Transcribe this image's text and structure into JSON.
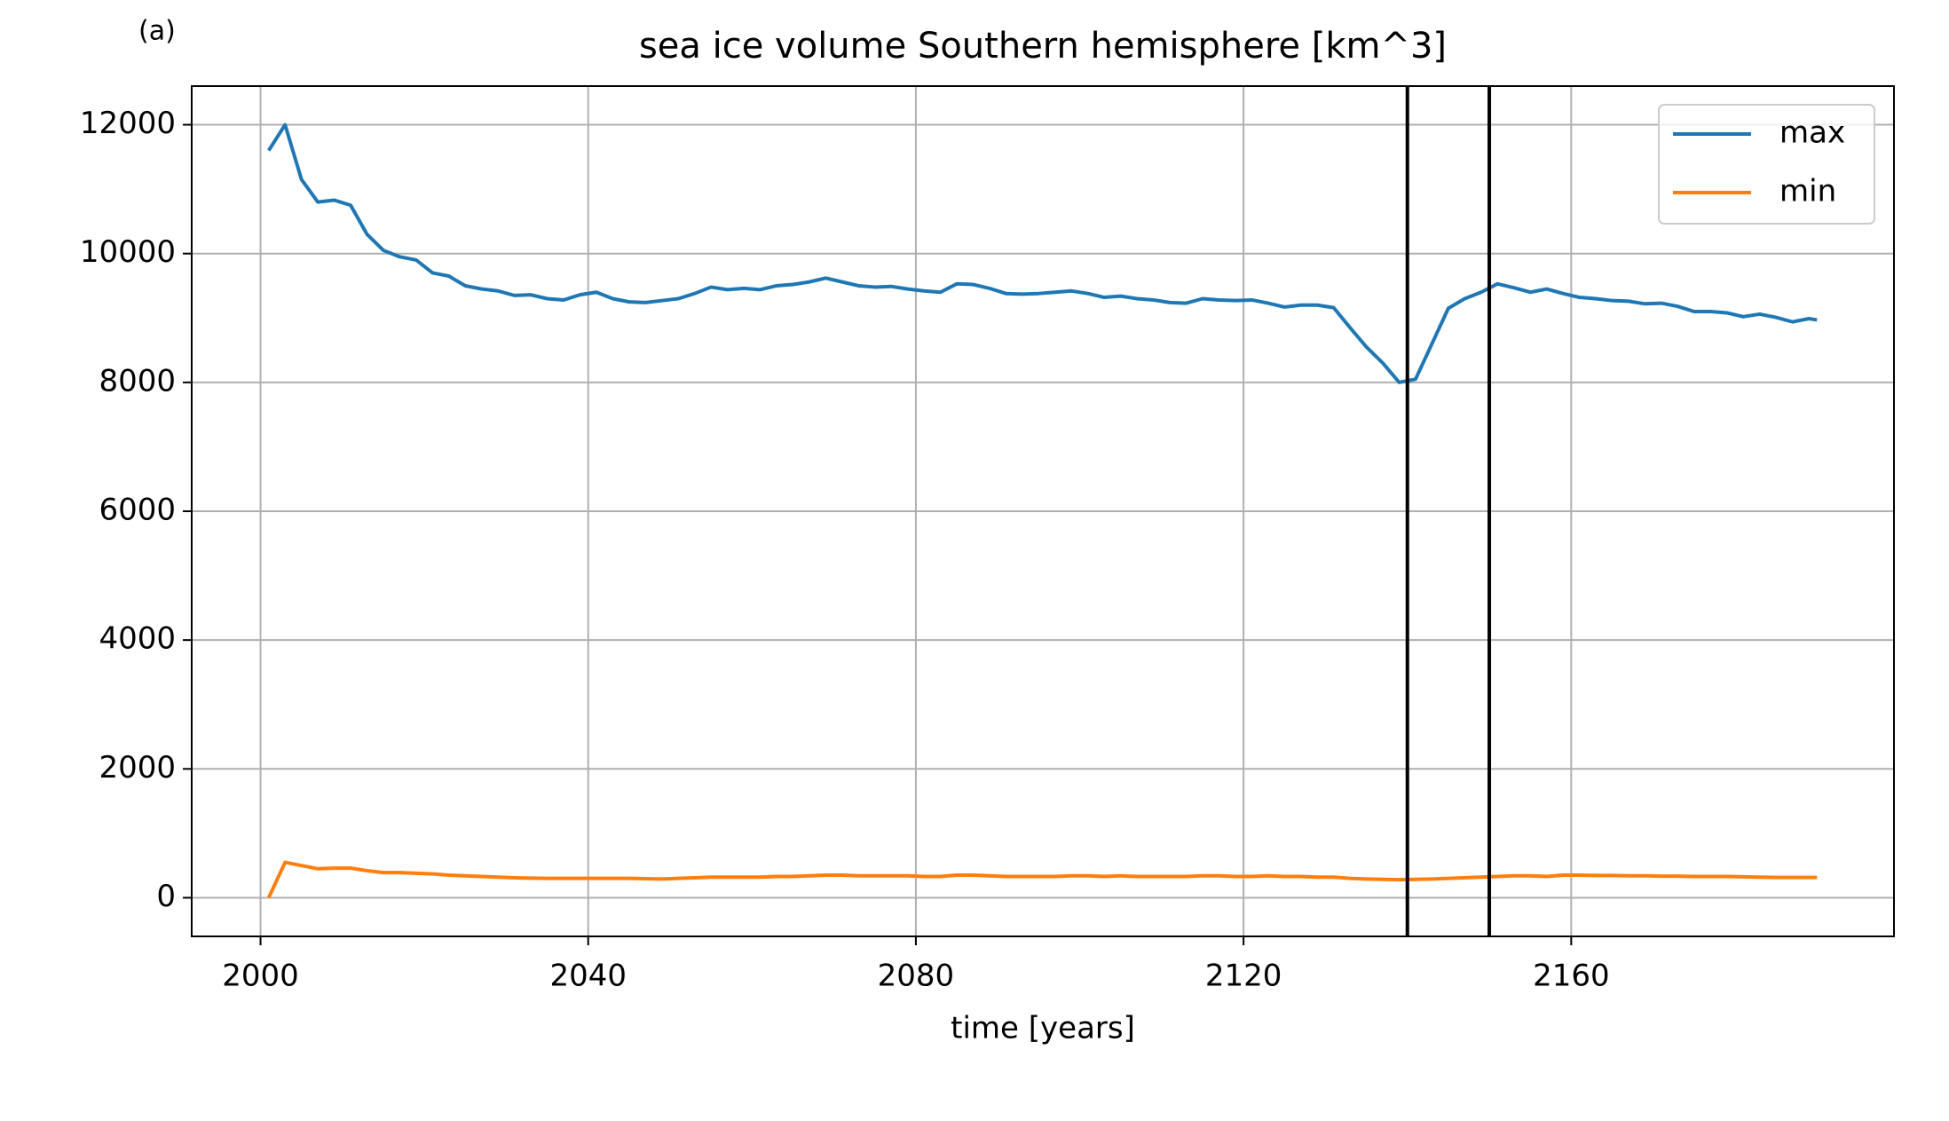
{
  "chart_data": {
    "type": "line",
    "title": "sea ice volume Southern hemisphere [km^3]",
    "annotation": "(a)",
    "xlabel": "time [years]",
    "x": [
      2001,
      2003,
      2005,
      2007,
      2009,
      2011,
      2013,
      2015,
      2017,
      2019,
      2021,
      2023,
      2025,
      2027,
      2029,
      2031,
      2033,
      2035,
      2037,
      2039,
      2041,
      2043,
      2045,
      2047,
      2049,
      2051,
      2053,
      2055,
      2057,
      2059,
      2061,
      2063,
      2065,
      2067,
      2069,
      2071,
      2073,
      2075,
      2077,
      2079,
      2081,
      2083,
      2085,
      2087,
      2089,
      2091,
      2093,
      2095,
      2097,
      2099,
      2101,
      2103,
      2105,
      2107,
      2109,
      2111,
      2113,
      2115,
      2117,
      2119,
      2121,
      2123,
      2125,
      2127,
      2129,
      2131,
      2133,
      2135,
      2137,
      2139,
      2141,
      2143,
      2145,
      2147,
      2149,
      2151,
      2153,
      2155,
      2157,
      2159,
      2161,
      2163,
      2165,
      2167,
      2169,
      2171,
      2173,
      2175,
      2177,
      2179,
      2181,
      2183,
      2185,
      2187,
      2189,
      2190
    ],
    "series": [
      {
        "name": "max",
        "color": "#1f77b4",
        "values": [
          11600,
          12000,
          11150,
          10800,
          10830,
          10750,
          10300,
          10050,
          9950,
          9900,
          9700,
          9650,
          9500,
          9450,
          9420,
          9350,
          9360,
          9300,
          9280,
          9360,
          9400,
          9300,
          9250,
          9240,
          9270,
          9300,
          9380,
          9480,
          9440,
          9460,
          9440,
          9500,
          9520,
          9560,
          9620,
          9560,
          9500,
          9480,
          9490,
          9450,
          9420,
          9400,
          9530,
          9520,
          9460,
          9380,
          9370,
          9380,
          9400,
          9420,
          9380,
          9320,
          9340,
          9300,
          9280,
          9240,
          9230,
          9300,
          9280,
          9270,
          9280,
          9230,
          9170,
          9200,
          9200,
          9160,
          8850,
          8550,
          8300,
          8000,
          8050,
          8600,
          9150,
          9300,
          9400,
          9530,
          9470,
          9400,
          9450,
          9380,
          9320,
          9300,
          9270,
          9260,
          9220,
          9230,
          9180,
          9100,
          9100,
          9080,
          9020,
          9060,
          9010,
          8940,
          8990,
          8970
        ]
      },
      {
        "name": "min",
        "color": "#ff7f0e",
        "values": [
          0,
          550,
          500,
          450,
          460,
          460,
          420,
          390,
          390,
          380,
          370,
          350,
          340,
          330,
          320,
          310,
          305,
          300,
          300,
          300,
          300,
          300,
          300,
          295,
          290,
          300,
          310,
          320,
          320,
          320,
          320,
          330,
          330,
          340,
          350,
          350,
          340,
          340,
          340,
          340,
          330,
          330,
          350,
          350,
          340,
          330,
          330,
          330,
          330,
          340,
          340,
          330,
          340,
          330,
          330,
          330,
          330,
          340,
          340,
          330,
          330,
          340,
          330,
          330,
          320,
          320,
          300,
          290,
          285,
          280,
          285,
          290,
          300,
          310,
          320,
          330,
          340,
          340,
          330,
          350,
          350,
          345,
          345,
          340,
          340,
          335,
          335,
          330,
          330,
          330,
          325,
          320,
          315,
          315,
          315,
          315
        ]
      }
    ],
    "vlines": [
      2140,
      2150
    ],
    "xlim": [
      1991.6,
      2199.4
    ],
    "xticks": [
      2000,
      2040,
      2080,
      2120,
      2160
    ],
    "ylim": [
      -600,
      12600
    ],
    "yticks": [
      0,
      2000,
      4000,
      6000,
      8000,
      10000,
      12000
    ],
    "grid": true,
    "legend": "upper right"
  }
}
